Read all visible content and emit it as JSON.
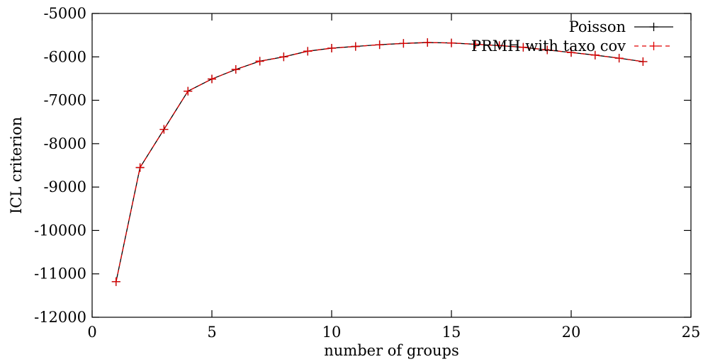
{
  "chart_data": {
    "type": "line",
    "xlabel": "number of groups",
    "ylabel": "ICL criterion",
    "xlim": [
      0,
      25
    ],
    "ylim": [
      -12000,
      -5000
    ],
    "xticks": [
      0,
      5,
      10,
      15,
      20,
      25
    ],
    "yticks": [
      -12000,
      -11000,
      -10000,
      -9000,
      -8000,
      -7000,
      -6000,
      -5000
    ],
    "x_tick_labels": [
      "0",
      "5",
      "10",
      "15",
      "20",
      "25"
    ],
    "y_tick_labels": [
      "-12000",
      "-11000",
      "-10000",
      "-9000",
      "-8000",
      "-7000",
      "-6000",
      "-5000"
    ],
    "grid": false,
    "legend_position": "top-right",
    "x": [
      1,
      2,
      3,
      4,
      5,
      6,
      7,
      8,
      9,
      10,
      11,
      12,
      13,
      14,
      15,
      16,
      17,
      18,
      19,
      20,
      21,
      22,
      23
    ],
    "series": [
      {
        "name": "Poisson",
        "color": "#000000",
        "line_style": "solid",
        "marker": "plus",
        "values": [
          -11180,
          -8550,
          -7670,
          -6790,
          -6510,
          -6290,
          -6100,
          -6000,
          -5870,
          -5800,
          -5760,
          -5720,
          -5690,
          -5670,
          -5680,
          -5710,
          -5740,
          -5780,
          -5840,
          -5900,
          -5960,
          -6030,
          -6110
        ]
      },
      {
        "name": "PRMH with taxo cov",
        "color": "#e00000",
        "line_style": "dashed",
        "marker": "plus",
        "values": [
          -11180,
          -8550,
          -7670,
          -6790,
          -6510,
          -6290,
          -6100,
          -6000,
          -5870,
          -5800,
          -5760,
          -5720,
          -5690,
          -5670,
          -5680,
          -5710,
          -5740,
          -5780,
          -5840,
          -5900,
          -5960,
          -6030,
          -6110
        ]
      }
    ]
  }
}
